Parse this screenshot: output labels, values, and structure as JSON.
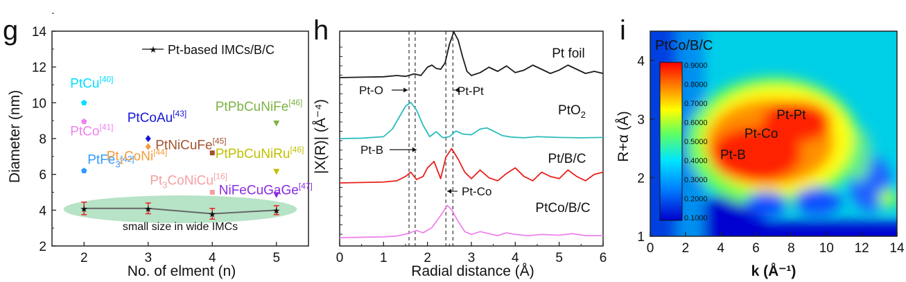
{
  "chart_data": [
    {
      "panel": "g",
      "type": "scatter",
      "xlabel": "No. of elment (n)",
      "ylabel": "Diameter (nm)",
      "xlim": [
        1.5,
        5.5
      ],
      "ylim": [
        2,
        14
      ],
      "xticks": [
        "2",
        "3",
        "4",
        "5"
      ],
      "yticks": [
        "2",
        "4",
        "6",
        "8",
        "10",
        "12",
        "14"
      ],
      "line_series": {
        "name": "Pt-based IMCs/B/C",
        "color": "#666666",
        "marker_color": "#e8201c",
        "x": [
          2,
          3,
          4,
          5
        ],
        "y": [
          4.1,
          4.1,
          3.8,
          4.0
        ],
        "err": [
          0.35,
          0.3,
          0.3,
          0.25
        ]
      },
      "points": [
        {
          "base": "PtCu",
          "ref": "[40]",
          "x": 2,
          "y": 10.0,
          "color": "#00e0ff",
          "marker": "pentagon"
        },
        {
          "base": "PtCo",
          "ref": "[41]",
          "x": 2,
          "y": 8.95,
          "color": "#ee82ee",
          "marker": "pentagon"
        },
        {
          "base": "PtFe",
          "sub": "3",
          "ref": "[42]",
          "x": 2,
          "y": 6.2,
          "color": "#3399ff",
          "marker": "pentagon"
        },
        {
          "base": "PtCoAu",
          "ref": "[43]",
          "x": 3,
          "y": 8.0,
          "color": "#1515d6",
          "marker": "diamond"
        },
        {
          "base": "Pt",
          "sub": "2",
          "tail": "CoNi",
          "ref": "[44]",
          "x": 3,
          "y": 7.55,
          "color": "#f39c3c",
          "marker": "diamond"
        },
        {
          "base": "PtNiCuFe",
          "ref": "[45]",
          "x": 4,
          "y": 7.2,
          "color": "#a0522d",
          "marker": "square"
        },
        {
          "base": "Pt",
          "sub": "3",
          "tail": "CoNiCu",
          "ref": "[16]",
          "x": 4,
          "y": 5.0,
          "color": "#f4a0a0",
          "marker": "square"
        },
        {
          "base": "PtPbCuNiFe",
          "ref": "[46]",
          "x": 5,
          "y": 8.85,
          "color": "#7cb342",
          "marker": "tri-down"
        },
        {
          "base": "PtPbCuNiRu",
          "ref": "[46]",
          "x": 5,
          "y": 6.15,
          "color": "#c0c000",
          "marker": "tri-down"
        },
        {
          "base": "NiFeCuGaGe",
          "ref": "[47]",
          "x": 5,
          "y": 4.85,
          "color": "#8a2be2",
          "marker": "tri-down"
        }
      ],
      "annotation": "small size in wide IMCs",
      "annotation_color": "#9fd9b4"
    },
    {
      "panel": "h",
      "type": "line",
      "xlabel": "Radial distance (Å)",
      "ylabel": "|X(R)| (Å⁻⁴)",
      "xlim": [
        0,
        6
      ],
      "xticks": [
        "0",
        "1",
        "2",
        "3",
        "4",
        "5",
        "6"
      ],
      "vlines": [
        1.58,
        1.72,
        2.42,
        2.58
      ],
      "series": [
        {
          "name": "Pt foil",
          "color": "#1a1a1a",
          "offset": 3.0,
          "x": [
            0,
            0.5,
            1.0,
            1.3,
            1.5,
            1.7,
            1.85,
            2.0,
            2.1,
            2.2,
            2.3,
            2.4,
            2.5,
            2.6,
            2.7,
            2.8,
            2.9,
            3.0,
            3.2,
            3.4,
            3.6,
            3.8,
            4.0,
            4.2,
            4.4,
            4.6,
            4.8,
            5.0,
            5.2,
            5.4,
            5.6,
            5.8,
            6.0
          ],
          "y": [
            0,
            0.01,
            0.02,
            0.05,
            0.03,
            0.09,
            0.05,
            0.25,
            0.3,
            0.22,
            0.2,
            0.35,
            0.8,
            1.1,
            0.9,
            0.5,
            0.15,
            0.05,
            0.12,
            0.25,
            0.15,
            0.28,
            0.12,
            0.18,
            0.3,
            0.2,
            0.1,
            0.18,
            0.3,
            0.2,
            0.1,
            0.15,
            0.1
          ]
        },
        {
          "name": "PtO2",
          "sub": "2",
          "base": "PtO",
          "color": "#2bbcbc",
          "offset": 2.0,
          "x": [
            0,
            0.5,
            1.0,
            1.2,
            1.35,
            1.5,
            1.62,
            1.75,
            1.9,
            2.05,
            2.2,
            2.35,
            2.5,
            2.65,
            2.8,
            3.0,
            3.2,
            3.35,
            3.5,
            3.7,
            3.9,
            4.2,
            4.5,
            5.0,
            5.5,
            6.0
          ],
          "y": [
            0,
            0.01,
            0.05,
            0.25,
            0.55,
            0.85,
            0.95,
            0.75,
            0.35,
            0.05,
            0.18,
            0.02,
            0.05,
            0.2,
            0.12,
            0.1,
            0.25,
            0.28,
            0.2,
            0.08,
            0.04,
            0.02,
            0.05,
            0.03,
            0.02,
            0.03
          ]
        },
        {
          "name": "Pt/B/C",
          "color": "#e8201c",
          "offset": 1.0,
          "x": [
            0,
            0.5,
            1.0,
            1.3,
            1.5,
            1.62,
            1.75,
            1.9,
            2.0,
            2.15,
            2.3,
            2.42,
            2.55,
            2.7,
            2.85,
            3.0,
            3.2,
            3.4,
            3.6,
            3.8,
            4.0,
            4.2,
            4.4,
            4.6,
            4.8,
            5.0,
            5.2,
            5.4,
            5.6,
            5.8,
            6.0
          ],
          "y": [
            0,
            0.01,
            0.02,
            0.05,
            0.15,
            0.25,
            0.08,
            0.15,
            0.35,
            0.5,
            0.1,
            0.6,
            0.8,
            0.55,
            0.25,
            0.1,
            0.3,
            0.12,
            0.05,
            0.22,
            0.35,
            0.15,
            0.05,
            0.25,
            0.15,
            0.1,
            0.3,
            0.15,
            0.05,
            0.2,
            0.25
          ]
        },
        {
          "name": "PtCo/B/C",
          "color": "#ee82ee",
          "offset": 0.0,
          "x": [
            0,
            0.5,
            1.0,
            1.3,
            1.55,
            1.75,
            1.9,
            2.1,
            2.3,
            2.45,
            2.55,
            2.7,
            2.85,
            3.0,
            3.2,
            3.4,
            3.6,
            3.8,
            4.0,
            4.3,
            4.6,
            5.0,
            5.3,
            5.6,
            6.0
          ],
          "y": [
            0,
            0.01,
            0.02,
            0.04,
            0.1,
            0.18,
            0.12,
            0.25,
            0.55,
            0.8,
            0.7,
            0.4,
            0.15,
            0.08,
            0.15,
            0.1,
            0.05,
            0.12,
            0.08,
            0.05,
            0.08,
            0.06,
            0.1,
            0.05,
            0.05
          ]
        }
      ],
      "annotations": [
        {
          "label": "Pt-O",
          "target_x": 1.58
        },
        {
          "label": "Pt-Pt",
          "target_x": 2.58
        },
        {
          "label": "Pt-B",
          "target_x": 1.72
        },
        {
          "label": "Pt-Co",
          "target_x": 2.42
        }
      ]
    },
    {
      "panel": "i",
      "type": "heatmap",
      "title": "PtCo/B/C",
      "xlabel": "k (Å⁻¹)",
      "ylabel": "R+α (Å)",
      "xlim": [
        0,
        14
      ],
      "ylim": [
        1,
        4.5
      ],
      "xticks": [
        "0",
        "2",
        "4",
        "6",
        "8",
        "10",
        "12",
        "14"
      ],
      "yticks": [
        "1",
        "2",
        "3",
        "4"
      ],
      "colorbar_ticks": [
        "0.9000",
        "0.8000",
        "0.7000",
        "0.6000",
        "0.5000",
        "0.4000",
        "0.3000",
        "0.2000",
        "0.1000"
      ],
      "labels": [
        {
          "text": "Pt-Pt",
          "k": 8.0,
          "r": 3.0
        },
        {
          "text": "Pt-Co",
          "k": 6.3,
          "r": 2.68
        },
        {
          "text": "Pt-B",
          "k": 4.7,
          "r": 2.32
        }
      ]
    }
  ]
}
